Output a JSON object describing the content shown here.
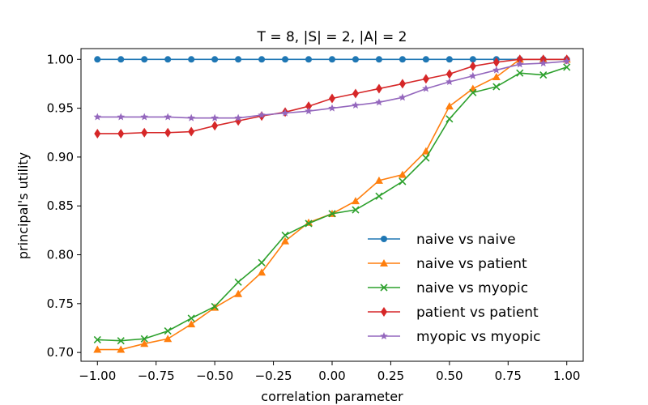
{
  "chart_data": {
    "type": "line",
    "title": "T = 8, |S| = 2, |A| = 2",
    "xlabel": "correlation parameter",
    "ylabel": "principal's utility",
    "xlim": [
      -1.07,
      1.07
    ],
    "ylim": [
      0.691,
      1.011
    ],
    "xticks": [
      -1.0,
      -0.75,
      -0.5,
      -0.25,
      0.0,
      0.25,
      0.5,
      0.75,
      1.0
    ],
    "xtick_labels": [
      "−1.00",
      "−0.75",
      "−0.50",
      "−0.25",
      "0.00",
      "0.25",
      "0.50",
      "0.75",
      "1.00"
    ],
    "yticks": [
      0.7,
      0.75,
      0.8,
      0.85,
      0.9,
      0.95,
      1.0
    ],
    "ytick_labels": [
      "0.70",
      "0.75",
      "0.80",
      "0.85",
      "0.90",
      "0.95",
      "1.00"
    ],
    "grid": false,
    "legend_position": "lower-right",
    "x": [
      -1.0,
      -0.9,
      -0.8,
      -0.7,
      -0.6,
      -0.5,
      -0.4,
      -0.3,
      -0.2,
      -0.1,
      0.0,
      0.1,
      0.2,
      0.3,
      0.4,
      0.5,
      0.6,
      0.7,
      0.8,
      0.9,
      1.0
    ],
    "series": [
      {
        "name": "naive vs naive",
        "color": "#1f77b4",
        "marker": "circle",
        "values": [
          1.0,
          1.0,
          1.0,
          1.0,
          1.0,
          1.0,
          1.0,
          1.0,
          1.0,
          1.0,
          1.0,
          1.0,
          1.0,
          1.0,
          1.0,
          1.0,
          1.0,
          1.0,
          1.0,
          1.0,
          1.0
        ]
      },
      {
        "name": "naive vs patient",
        "color": "#ff7f0e",
        "marker": "triangle",
        "values": [
          0.703,
          0.703,
          0.709,
          0.714,
          0.729,
          0.746,
          0.76,
          0.782,
          0.814,
          0.833,
          0.842,
          0.855,
          0.876,
          0.882,
          0.906,
          0.952,
          0.97,
          0.982,
          1.0,
          1.0,
          1.0
        ]
      },
      {
        "name": "naive vs myopic",
        "color": "#2ca02c",
        "marker": "x",
        "values": [
          0.713,
          0.712,
          0.714,
          0.722,
          0.735,
          0.747,
          0.772,
          0.792,
          0.82,
          0.832,
          0.842,
          0.846,
          0.86,
          0.875,
          0.899,
          0.939,
          0.966,
          0.972,
          0.986,
          0.984,
          0.992
        ]
      },
      {
        "name": "patient vs patient",
        "color": "#d62728",
        "marker": "diamond",
        "values": [
          0.924,
          0.924,
          0.925,
          0.925,
          0.926,
          0.932,
          0.937,
          0.942,
          0.946,
          0.952,
          0.96,
          0.965,
          0.97,
          0.975,
          0.98,
          0.985,
          0.993,
          0.997,
          1.0,
          1.0,
          1.0
        ]
      },
      {
        "name": "myopic vs myopic",
        "color": "#9467bd",
        "marker": "star",
        "values": [
          0.941,
          0.941,
          0.941,
          0.941,
          0.94,
          0.94,
          0.94,
          0.943,
          0.945,
          0.947,
          0.95,
          0.953,
          0.956,
          0.961,
          0.97,
          0.977,
          0.983,
          0.989,
          0.995,
          0.996,
          0.998
        ]
      }
    ]
  }
}
